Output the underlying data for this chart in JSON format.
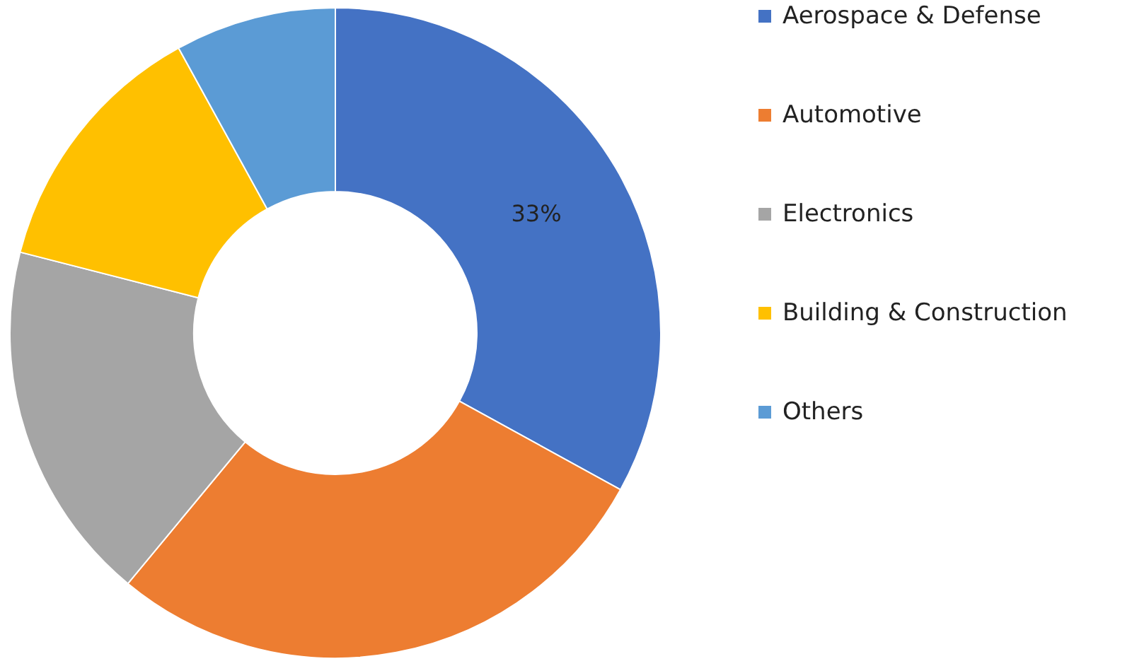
{
  "chart_data": {
    "type": "donut",
    "categories": [
      "Aerospace & Defense",
      "Automotive",
      "Electronics",
      "Building & Construction",
      "Others"
    ],
    "values": [
      33,
      28,
      18,
      13,
      8
    ],
    "colors": [
      "#4472c4",
      "#ed7d31",
      "#a5a5a5",
      "#ffc000",
      "#5b9bd5"
    ],
    "value_labels": [
      "33%",
      null,
      null,
      null,
      null
    ],
    "legend": "right"
  }
}
